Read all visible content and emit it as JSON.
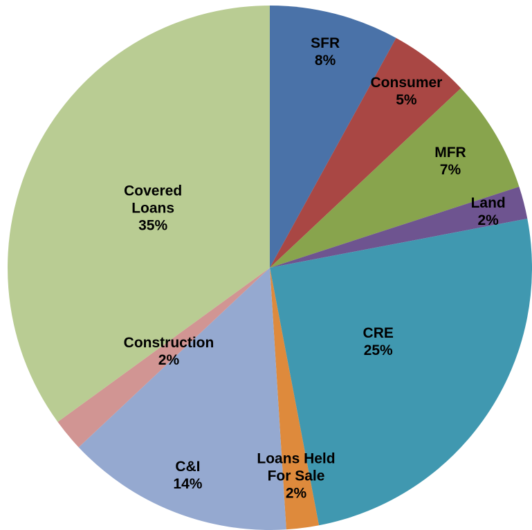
{
  "chart_data": {
    "type": "pie",
    "categories": [
      "SFR",
      "Consumer",
      "MFR",
      "Land",
      "CRE",
      "Loans Held For Sale",
      "C&I",
      "Construction",
      "Covered Loans"
    ],
    "values": [
      8,
      5,
      7,
      2,
      25,
      2,
      14,
      2,
      35
    ],
    "value_labels": [
      "8%",
      "5%",
      "7%",
      "2%",
      "25%",
      "2%",
      "14%",
      "2%",
      "35%"
    ],
    "colors": [
      "#4a72a8",
      "#a94744",
      "#88a44d",
      "#6e5490",
      "#4098b0",
      "#de8a3c",
      "#95a9d0",
      "#d19593",
      "#b9cc93"
    ]
  }
}
